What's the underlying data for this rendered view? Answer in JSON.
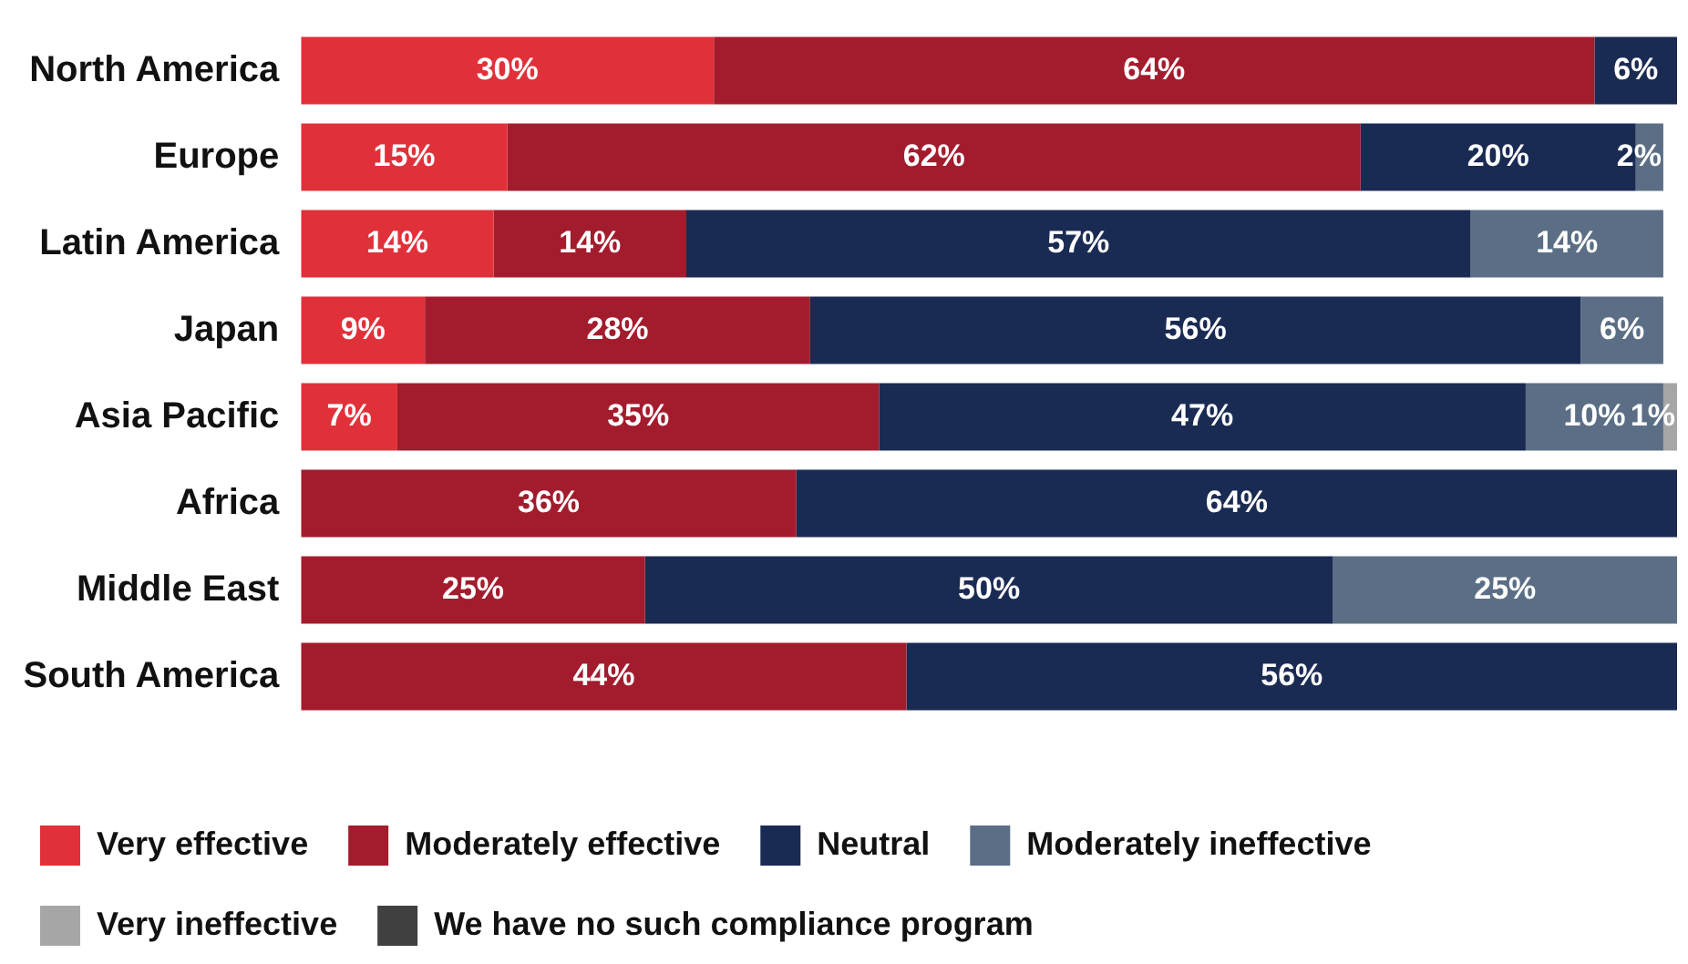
{
  "chart_data": {
    "type": "bar",
    "orientation": "horizontal",
    "stacked": true,
    "categories": [
      "North America",
      "Europe",
      "Latin America",
      "Japan",
      "Asia Pacific",
      "Africa",
      "Middle East",
      "South America"
    ],
    "series": [
      {
        "name": "Very effective",
        "color": "#e0313a",
        "values": [
          30,
          15,
          14,
          9,
          7,
          null,
          null,
          null
        ],
        "value_labels": [
          "30%",
          "15%",
          "14%",
          "9%",
          "7%",
          null,
          null,
          null
        ]
      },
      {
        "name": "Moderately effective",
        "color": "#a31c2d",
        "values": [
          64,
          62,
          14,
          28,
          35,
          36,
          25,
          44
        ],
        "value_labels": [
          "64%",
          "62%",
          "14%",
          "28%",
          "35%",
          "36%",
          "25%",
          "44%"
        ]
      },
      {
        "name": "Neutral",
        "color": "#1a2b53",
        "values": [
          6,
          20,
          57,
          56,
          47,
          64,
          50,
          56
        ],
        "value_labels": [
          "6%",
          "20%",
          "57%",
          "56%",
          "47%",
          "64%",
          "50%",
          "56%"
        ]
      },
      {
        "name": "Moderately ineffective",
        "color": "#5b6e85",
        "values": [
          null,
          2,
          14,
          6,
          10,
          null,
          25,
          null
        ],
        "value_labels": [
          null,
          "2%",
          "14%",
          "6%",
          "10%",
          null,
          "25%",
          null
        ]
      },
      {
        "name": "Very ineffective",
        "color": "#a6a6a6",
        "values": [
          null,
          null,
          null,
          null,
          1,
          null,
          null,
          null
        ],
        "value_labels": [
          null,
          null,
          null,
          null,
          "1%",
          null,
          null,
          null
        ]
      },
      {
        "name": "We have no such compliance program",
        "color": "#404040",
        "values": [
          null,
          null,
          null,
          null,
          null,
          null,
          null,
          null
        ],
        "value_labels": [
          null,
          null,
          null,
          null,
          null,
          null,
          null,
          null
        ]
      }
    ],
    "xlim": [
      0,
      100
    ],
    "tick_labels": "y",
    "legend": "bottom left"
  }
}
